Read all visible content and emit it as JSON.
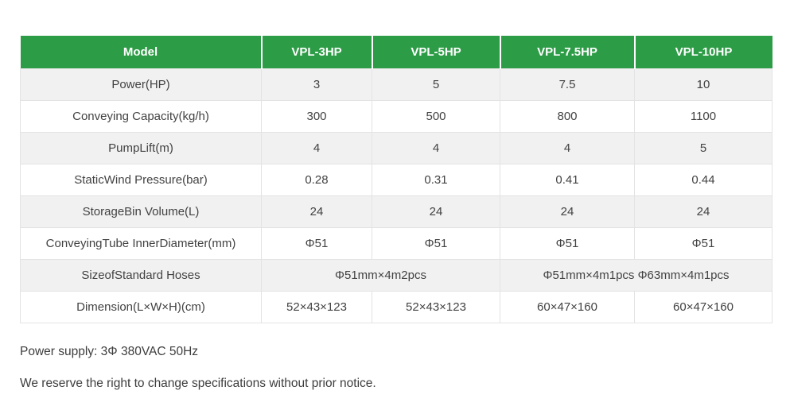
{
  "table": {
    "header": [
      "Model",
      "VPL-3HP",
      "VPL-5HP",
      "VPL-7.5HP",
      "VPL-10HP"
    ],
    "rows": [
      {
        "label": "Power(HP)",
        "cells": [
          {
            "text": "3"
          },
          {
            "text": "5"
          },
          {
            "text": "7.5"
          },
          {
            "text": "10"
          }
        ]
      },
      {
        "label": "Conveying Capacity(kg/h)",
        "cells": [
          {
            "text": "300"
          },
          {
            "text": "500"
          },
          {
            "text": "800"
          },
          {
            "text": "1100"
          }
        ]
      },
      {
        "label": "PumpLift(m)",
        "cells": [
          {
            "text": "4"
          },
          {
            "text": "4"
          },
          {
            "text": "4"
          },
          {
            "text": "5"
          }
        ]
      },
      {
        "label": "StaticWind Pressure(bar)",
        "cells": [
          {
            "text": "0.28"
          },
          {
            "text": "0.31"
          },
          {
            "text": "0.41"
          },
          {
            "text": "0.44"
          }
        ]
      },
      {
        "label": "StorageBin Volume(L)",
        "cells": [
          {
            "text": "24"
          },
          {
            "text": "24"
          },
          {
            "text": "24"
          },
          {
            "text": "24"
          }
        ]
      },
      {
        "label": "ConveyingTube InnerDiameter(mm)",
        "cells": [
          {
            "text": "Φ51"
          },
          {
            "text": "Φ51"
          },
          {
            "text": "Φ51"
          },
          {
            "text": "Φ51"
          }
        ]
      },
      {
        "label": "SizeofStandard Hoses",
        "cells": [
          {
            "text": "Φ51mm×4m2pcs",
            "colspan": 2
          },
          {
            "text": "Φ51mm×4m1pcs Φ63mm×4m1pcs",
            "colspan": 2
          }
        ]
      },
      {
        "label": "Dimension(L×W×H)(cm)",
        "cells": [
          {
            "text": "52×43×123"
          },
          {
            "text": "52×43×123"
          },
          {
            "text": "60×47×160"
          },
          {
            "text": "60×47×160"
          }
        ]
      }
    ]
  },
  "notes": {
    "power_supply": "Power supply: 3Φ 380VAC 50Hz",
    "disclaimer": "We reserve the right to change specifications without prior notice."
  },
  "colors": {
    "header_bg": "#2d9c46",
    "header_text": "#ffffff",
    "row_alt_bg": "#f1f1f1",
    "row_bg": "#ffffff",
    "border": "#e3e3e3",
    "text": "#424242"
  }
}
